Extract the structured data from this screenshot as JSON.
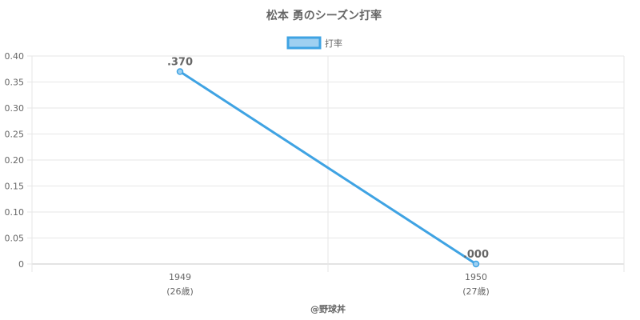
{
  "chart_data": {
    "type": "line",
    "title": "松本 勇のシーズン打率",
    "legend": {
      "label": "打率",
      "position": "top-center"
    },
    "categories": [
      {
        "year": "1949",
        "age": "(26歳)"
      },
      {
        "year": "1950",
        "age": "(27歳)"
      }
    ],
    "series": [
      {
        "name": "打率",
        "values": [
          0.37,
          0.0
        ],
        "labels": [
          ".370",
          ".000"
        ]
      }
    ],
    "yticks": [
      "0",
      "0.05",
      "0.10",
      "0.15",
      "0.20",
      "0.25",
      "0.30",
      "0.35",
      "0.40"
    ],
    "ylim": [
      0,
      0.4
    ],
    "grid": true,
    "colors": {
      "line": "#3fa3e3",
      "fill": "#9fd0f1",
      "grid": "#e6e6e6",
      "axis": "#c8c8c8",
      "text": "#666666"
    }
  },
  "credit": "@野球丼"
}
